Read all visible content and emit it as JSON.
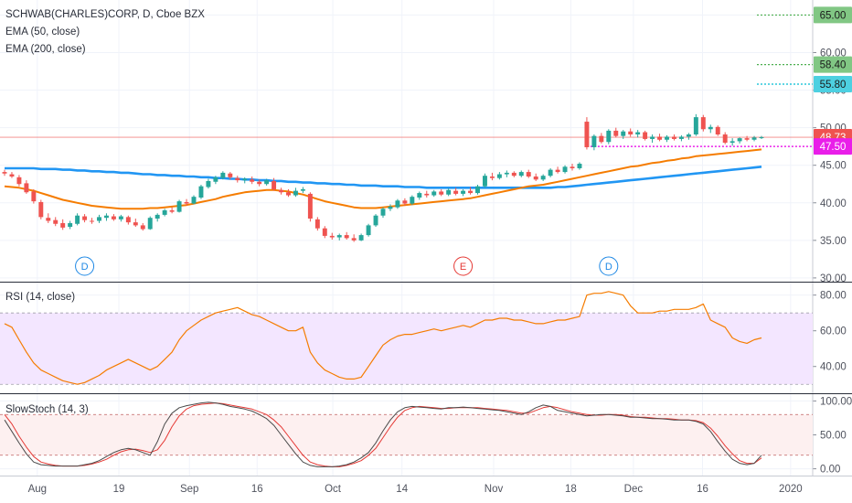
{
  "legend": {
    "symbol": "SCHWAB(CHARLES)CORP, D, Cboe BZX",
    "ema50": "EMA (50, close)",
    "ema200": "EMA (200, close)",
    "rsi": "RSI (14, close)",
    "stoch": "SlowStoch (14, 3)"
  },
  "colors": {
    "up": "#26a69a",
    "down": "#ef5350",
    "ema50": "#f57c00",
    "ema200": "#2196f3",
    "rsi": "#f57c00",
    "rsi_band": "#f3e6ff",
    "stoch_k": "#4a4a4a",
    "stoch_d": "#e53935",
    "last_price": "#ef5350",
    "support": "#e91ee9",
    "target_a": "#4caf50",
    "target_b": "#00bcd4"
  },
  "chart_data": [
    {
      "type": "candlestick",
      "title": "SCHWAB(CHARLES)CORP, D, Cboe BZX",
      "ylim": [
        29.5,
        67
      ],
      "y_ticks": [
        30,
        35,
        40,
        45,
        50,
        55,
        60,
        65
      ],
      "x_ticks": [
        "Aug",
        "19",
        "Sep",
        "16",
        "Oct",
        "14",
        "Nov",
        "18",
        "Dec",
        "16",
        "2020"
      ],
      "ohlc": [
        [
          44.1,
          44.4,
          43.6,
          43.9
        ],
        [
          43.8,
          44.1,
          43.3,
          43.5
        ],
        [
          43.4,
          43.7,
          42.2,
          42.5
        ],
        [
          42.6,
          43.0,
          41.2,
          41.4
        ],
        [
          41.5,
          41.8,
          39.9,
          40.2
        ],
        [
          40.1,
          40.4,
          37.8,
          38.1
        ],
        [
          38.0,
          38.6,
          37.3,
          37.6
        ],
        [
          37.7,
          38.1,
          36.9,
          37.2
        ],
        [
          37.3,
          37.8,
          36.4,
          36.7
        ],
        [
          36.8,
          37.6,
          36.5,
          37.3
        ],
        [
          37.2,
          38.6,
          37.0,
          38.3
        ],
        [
          38.2,
          38.5,
          37.4,
          37.7
        ],
        [
          37.6,
          38.0,
          37.2,
          37.5
        ],
        [
          37.6,
          38.4,
          37.3,
          38.1
        ],
        [
          38.0,
          38.6,
          37.6,
          38.3
        ],
        [
          38.2,
          38.5,
          37.6,
          37.8
        ],
        [
          37.8,
          38.4,
          37.5,
          38.2
        ],
        [
          38.1,
          38.3,
          37.1,
          37.4
        ],
        [
          37.4,
          37.9,
          36.8,
          37.0
        ],
        [
          37.0,
          37.3,
          36.3,
          36.5
        ],
        [
          36.5,
          38.2,
          36.4,
          38.0
        ],
        [
          37.9,
          38.6,
          37.5,
          38.4
        ],
        [
          38.4,
          39.2,
          38.2,
          39.0
        ],
        [
          39.0,
          39.4,
          38.6,
          38.8
        ],
        [
          38.8,
          40.4,
          38.7,
          40.2
        ],
        [
          40.1,
          40.5,
          39.6,
          39.9
        ],
        [
          39.9,
          41.0,
          39.8,
          40.8
        ],
        [
          40.7,
          42.4,
          40.5,
          42.2
        ],
        [
          42.1,
          43.2,
          41.9,
          42.9
        ],
        [
          42.8,
          43.6,
          42.5,
          43.4
        ],
        [
          43.3,
          44.2,
          43.1,
          44.0
        ],
        [
          43.9,
          44.1,
          43.1,
          43.4
        ],
        [
          43.3,
          43.6,
          42.7,
          43.0
        ],
        [
          43.0,
          43.4,
          42.6,
          43.2
        ],
        [
          43.1,
          43.5,
          42.5,
          42.8
        ],
        [
          42.8,
          43.1,
          42.2,
          42.5
        ],
        [
          42.5,
          43.2,
          42.3,
          43.0
        ],
        [
          42.9,
          43.3,
          41.6,
          41.8
        ],
        [
          41.7,
          42.0,
          41.1,
          41.4
        ],
        [
          41.4,
          41.8,
          40.8,
          41.0
        ],
        [
          41.0,
          42.0,
          40.8,
          41.6
        ],
        [
          41.6,
          42.1,
          41.3,
          41.8
        ],
        [
          41.2,
          41.4,
          37.5,
          37.9
        ],
        [
          37.8,
          38.1,
          36.3,
          36.6
        ],
        [
          36.6,
          36.9,
          35.3,
          35.6
        ],
        [
          35.6,
          36.0,
          35.1,
          35.4
        ],
        [
          35.4,
          35.9,
          35.0,
          35.7
        ],
        [
          35.7,
          36.1,
          35.1,
          35.3
        ],
        [
          35.3,
          35.8,
          34.8,
          35.0
        ],
        [
          35.0,
          35.9,
          34.9,
          35.7
        ],
        [
          35.7,
          37.2,
          35.5,
          37.0
        ],
        [
          37.0,
          38.5,
          36.8,
          38.3
        ],
        [
          38.3,
          39.4,
          38.0,
          39.2
        ],
        [
          39.2,
          39.8,
          38.9,
          39.5
        ],
        [
          39.4,
          40.5,
          39.2,
          40.3
        ],
        [
          40.3,
          40.6,
          39.6,
          39.9
        ],
        [
          39.9,
          41.0,
          39.7,
          40.8
        ],
        [
          40.7,
          41.5,
          40.4,
          41.3
        ],
        [
          41.2,
          41.6,
          40.7,
          41.0
        ],
        [
          41.0,
          41.7,
          40.8,
          41.5
        ],
        [
          41.5,
          41.8,
          40.9,
          41.1
        ],
        [
          41.1,
          41.9,
          40.9,
          41.7
        ],
        [
          41.6,
          42.0,
          41.0,
          41.2
        ],
        [
          41.2,
          41.8,
          40.9,
          41.6
        ],
        [
          41.6,
          42.1,
          41.1,
          41.3
        ],
        [
          41.3,
          42.4,
          41.1,
          42.2
        ],
        [
          42.2,
          43.9,
          42.0,
          43.6
        ],
        [
          43.5,
          44.0,
          43.0,
          43.3
        ],
        [
          43.3,
          44.1,
          43.1,
          43.8
        ],
        [
          43.8,
          44.3,
          43.4,
          44.0
        ],
        [
          44.0,
          44.2,
          43.4,
          43.6
        ],
        [
          43.6,
          44.3,
          43.4,
          44.1
        ],
        [
          44.1,
          44.4,
          43.3,
          43.5
        ],
        [
          43.5,
          43.9,
          42.9,
          43.1
        ],
        [
          43.1,
          43.8,
          42.9,
          43.6
        ],
        [
          43.6,
          44.6,
          43.4,
          44.4
        ],
        [
          44.4,
          44.8,
          43.9,
          44.1
        ],
        [
          44.1,
          45.0,
          43.9,
          44.8
        ],
        [
          44.8,
          45.2,
          44.3,
          44.6
        ],
        [
          44.6,
          45.4,
          44.4,
          45.2
        ],
        [
          50.8,
          51.4,
          47.1,
          47.4
        ],
        [
          47.4,
          49.1,
          47.0,
          48.9
        ],
        [
          48.9,
          49.3,
          47.9,
          48.1
        ],
        [
          48.1,
          49.8,
          47.8,
          49.6
        ],
        [
          49.6,
          50.0,
          48.7,
          48.9
        ],
        [
          48.9,
          49.7,
          48.5,
          49.5
        ],
        [
          49.5,
          49.9,
          48.8,
          49.1
        ],
        [
          49.1,
          49.7,
          48.7,
          49.4
        ],
        [
          49.4,
          49.6,
          48.3,
          48.5
        ],
        [
          48.5,
          49.1,
          48.0,
          48.8
        ],
        [
          48.8,
          49.2,
          48.2,
          48.4
        ],
        [
          48.4,
          49.0,
          48.1,
          48.8
        ],
        [
          48.8,
          49.1,
          48.3,
          48.5
        ],
        [
          48.5,
          49.0,
          48.2,
          48.8
        ],
        [
          48.8,
          49.3,
          48.4,
          49.1
        ],
        [
          49.1,
          51.8,
          48.9,
          51.4
        ],
        [
          51.4,
          51.7,
          49.5,
          49.8
        ],
        [
          49.8,
          50.4,
          49.3,
          50.1
        ],
        [
          50.1,
          50.3,
          48.9,
          49.1
        ],
        [
          49.1,
          49.4,
          47.8,
          48.0
        ],
        [
          48.0,
          48.6,
          47.6,
          48.2
        ],
        [
          48.2,
          48.7,
          47.9,
          48.6
        ],
        [
          48.6,
          48.9,
          48.2,
          48.4
        ],
        [
          48.4,
          48.9,
          48.2,
          48.7
        ],
        [
          48.7,
          48.9,
          48.5,
          48.73
        ]
      ],
      "ema50": [
        42.2,
        42.1,
        42.0,
        41.8,
        41.6,
        41.3,
        41.0,
        40.7,
        40.4,
        40.2,
        40.0,
        39.8,
        39.6,
        39.5,
        39.4,
        39.3,
        39.2,
        39.2,
        39.2,
        39.2,
        39.3,
        39.3,
        39.4,
        39.5,
        39.6,
        39.7,
        39.9,
        40.1,
        40.3,
        40.5,
        40.8,
        41.0,
        41.2,
        41.4,
        41.5,
        41.6,
        41.7,
        41.7,
        41.6,
        41.5,
        41.3,
        41.1,
        40.8,
        40.5,
        40.2,
        40.0,
        39.8,
        39.6,
        39.4,
        39.3,
        39.3,
        39.3,
        39.4,
        39.5,
        39.6,
        39.7,
        39.8,
        39.9,
        40.0,
        40.1,
        40.2,
        40.3,
        40.4,
        40.5,
        40.6,
        40.8,
        41.0,
        41.2,
        41.4,
        41.6,
        41.8,
        42.0,
        42.2,
        42.3,
        42.4,
        42.6,
        42.8,
        43.0,
        43.2,
        43.4,
        43.6,
        43.8,
        44.0,
        44.2,
        44.4,
        44.6,
        44.8,
        44.9,
        45.1,
        45.3,
        45.4,
        45.6,
        45.7,
        45.9,
        46.0,
        46.2,
        46.3,
        46.4,
        46.5,
        46.6,
        46.7,
        46.8,
        46.9,
        47.0,
        47.1
      ],
      "ema200": [
        44.6,
        44.6,
        44.6,
        44.6,
        44.6,
        44.5,
        44.5,
        44.5,
        44.4,
        44.4,
        44.3,
        44.3,
        44.2,
        44.2,
        44.1,
        44.1,
        44.0,
        44.0,
        43.9,
        43.8,
        43.8,
        43.7,
        43.7,
        43.6,
        43.6,
        43.5,
        43.5,
        43.4,
        43.4,
        43.3,
        43.3,
        43.2,
        43.2,
        43.1,
        43.1,
        43.0,
        43.0,
        42.9,
        42.9,
        42.8,
        42.8,
        42.7,
        42.7,
        42.6,
        42.6,
        42.5,
        42.5,
        42.4,
        42.4,
        42.3,
        42.3,
        42.3,
        42.2,
        42.2,
        42.2,
        42.1,
        42.1,
        42.1,
        42.0,
        42.0,
        42.0,
        42.0,
        42.0,
        42.0,
        42.0,
        42.0,
        42.0,
        42.0,
        42.0,
        42.0,
        42.0,
        42.0,
        42.0,
        42.0,
        42.0,
        42.0,
        42.1,
        42.1,
        42.2,
        42.3,
        42.4,
        42.5,
        42.6,
        42.7,
        42.8,
        42.9,
        43.0,
        43.1,
        43.2,
        43.3,
        43.4,
        43.5,
        43.6,
        43.7,
        43.8,
        43.9,
        44.0,
        44.1,
        44.2,
        44.3,
        44.4,
        44.5,
        44.6,
        44.7,
        44.8
      ],
      "price_lines": [
        {
          "name": "last",
          "value": 48.73,
          "label": "48.73"
        },
        {
          "name": "support",
          "value": 47.5,
          "label": "47.50"
        },
        {
          "name": "target-high",
          "value": 65.0,
          "label": "65.00"
        },
        {
          "name": "target-mid",
          "value": 58.4,
          "label": "58.40"
        },
        {
          "name": "target-low",
          "value": 55.8,
          "label": "55.80"
        }
      ],
      "event_markers": [
        {
          "label": "D",
          "bar": 11
        },
        {
          "label": "E",
          "bar": 63
        },
        {
          "label": "D",
          "bar": 83
        }
      ]
    },
    {
      "type": "line",
      "title": "RSI (14, close)",
      "ylim": [
        25,
        87
      ],
      "y_ticks": [
        40,
        60,
        80
      ],
      "band": [
        30,
        70
      ],
      "values": [
        64,
        62,
        55,
        48,
        42,
        38,
        36,
        34,
        32,
        31,
        30,
        31,
        33,
        35,
        38,
        40,
        42,
        44,
        42,
        40,
        38,
        40,
        44,
        48,
        55,
        60,
        63,
        66,
        68,
        70,
        71,
        72,
        73,
        71,
        69,
        68,
        66,
        64,
        62,
        60,
        60,
        62,
        48,
        42,
        38,
        36,
        34,
        33,
        33,
        34,
        40,
        46,
        52,
        55,
        57,
        58,
        58,
        59,
        60,
        61,
        60,
        61,
        62,
        63,
        62,
        64,
        66,
        66,
        67,
        67,
        66,
        66,
        65,
        64,
        64,
        65,
        66,
        66,
        67,
        68,
        80,
        81,
        81,
        82,
        81,
        80,
        74,
        70,
        70,
        70,
        71,
        71,
        72,
        72,
        72,
        73,
        75,
        66,
        64,
        62,
        56,
        54,
        53,
        55,
        56
      ],
      "xlabel": "",
      "ylabel": ""
    },
    {
      "type": "line",
      "title": "SlowStoch (14, 3)",
      "ylim": [
        -10,
        110
      ],
      "y_ticks": [
        0,
        50,
        100
      ],
      "bands": [
        20,
        80
      ],
      "series": [
        {
          "name": "%K",
          "values": [
            72,
            55,
            38,
            22,
            10,
            6,
            5,
            4,
            4,
            4,
            4,
            6,
            8,
            12,
            18,
            24,
            28,
            30,
            28,
            24,
            20,
            40,
            66,
            82,
            90,
            93,
            95,
            97,
            98,
            97,
            95,
            92,
            90,
            88,
            85,
            80,
            74,
            64,
            50,
            36,
            22,
            10,
            5,
            3,
            3,
            3,
            4,
            6,
            10,
            16,
            24,
            38,
            56,
            72,
            84,
            90,
            92,
            91,
            90,
            89,
            88,
            90,
            90,
            91,
            90,
            89,
            88,
            87,
            86,
            84,
            82,
            80,
            84,
            90,
            94,
            92,
            86,
            84,
            82,
            80,
            78,
            79,
            80,
            80,
            79,
            78,
            76,
            76,
            75,
            74,
            74,
            73,
            72,
            72,
            72,
            70,
            66,
            55,
            40,
            26,
            14,
            8,
            6,
            8,
            20
          ]
        },
        {
          "name": "%D",
          "values": [
            80,
            66,
            48,
            32,
            18,
            10,
            7,
            5,
            4,
            4,
            4,
            5,
            7,
            10,
            14,
            20,
            25,
            28,
            29,
            27,
            24,
            28,
            42,
            62,
            78,
            88,
            93,
            95,
            96,
            97,
            96,
            94,
            92,
            90,
            88,
            84,
            80,
            72,
            62,
            48,
            34,
            20,
            10,
            6,
            4,
            3,
            3,
            5,
            8,
            12,
            20,
            30,
            46,
            62,
            76,
            86,
            90,
            92,
            91,
            90,
            89,
            89,
            90,
            90,
            90,
            90,
            89,
            88,
            87,
            86,
            84,
            82,
            82,
            86,
            90,
            92,
            90,
            87,
            84,
            82,
            80,
            79,
            79,
            80,
            80,
            79,
            77,
            76,
            76,
            75,
            74,
            74,
            73,
            72,
            72,
            71,
            68,
            60,
            48,
            34,
            22,
            12,
            8,
            8,
            16
          ]
        }
      ]
    }
  ]
}
